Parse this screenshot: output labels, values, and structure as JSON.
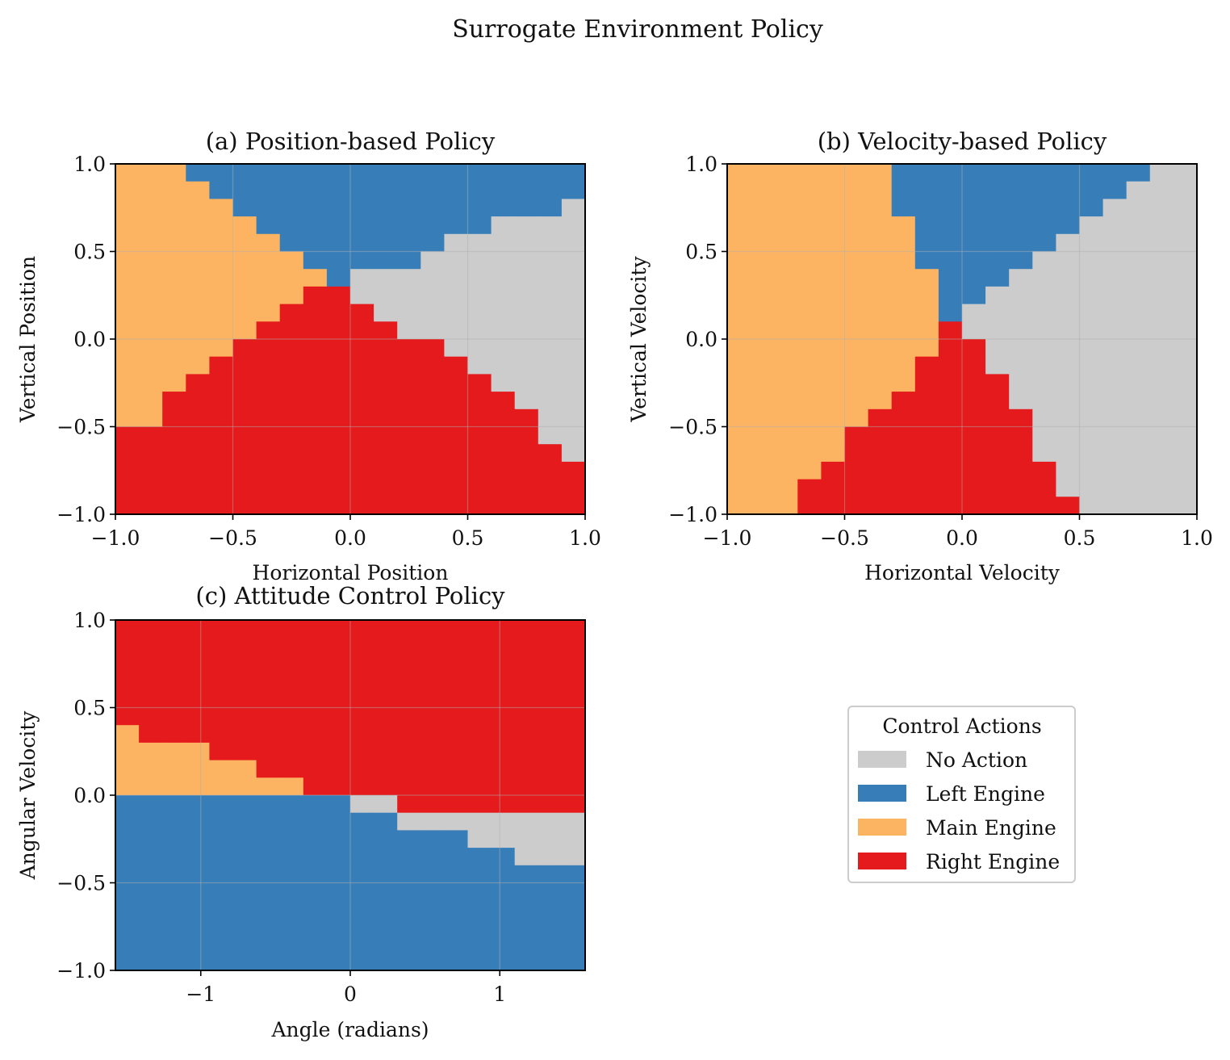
{
  "figure_title": "Surrogate Environment Policy",
  "legend": {
    "title": "Control Actions",
    "placement": "lower-right empty panel",
    "items": [
      {
        "label": "No Action",
        "color": "#cccccc"
      },
      {
        "label": "Left Engine",
        "color": "#377eb8"
      },
      {
        "label": "Main Engine",
        "color": "#fdb462"
      },
      {
        "label": "Right Engine",
        "color": "#e41a1c"
      }
    ]
  },
  "chart_data": [
    {
      "type": "heatmap",
      "title": "(a) Position-based Policy",
      "xlabel": "Horizontal Position",
      "ylabel": "Vertical Position",
      "xlim": [
        -1.0,
        1.0
      ],
      "ylim": [
        -1.0,
        1.0
      ],
      "xticks": [
        -1.0,
        -0.5,
        0.0,
        0.5,
        1.0
      ],
      "yticks": [
        -1.0,
        -0.5,
        0.0,
        0.5,
        1.0
      ],
      "xtick_labels": [
        "−1.0",
        "−0.5",
        "0.0",
        "0.5",
        "1.0"
      ],
      "ytick_labels": [
        "−1.0",
        "−0.5",
        "0.0",
        "0.5",
        "1.0"
      ],
      "grid": true,
      "action_codes": {
        "N": "No Action",
        "L": "Left Engine",
        "M": "Main Engine",
        "R": "Right Engine"
      },
      "row_order": "top row first (y from 1.0 down to -1.0), 20 columns x from -1.0 to 1.0",
      "grid_rows": [
        "MMMLLLLLLLLLLLLLLLLL",
        "MMMMLLLLLLLLLLLLLLLL",
        "MMMMMLLLLLLLLLLLLLLN",
        "MMMMMMLLLLLLLLLLNNNN",
        "MMMMMMMLLLLLLLNNNNNN",
        "MMMMMMMMLLLLLNNNNNNN",
        "MMMMMMMMMLNNNNNNNNNN",
        "MMMMMMMMRRNNNNNNNNNN",
        "MMMMMMMRRRRNNNNNNNNN",
        "MMMMMMRRRRRRNNNNNNNN",
        "MMMMMRRRRRRRRRNNNNNN",
        "MMMMRRRRRRRRRRRNNNNN",
        "MMMRRRRRRRRRRRRRNNNN",
        "MMRRRRRRRRRRRRRRRNNN",
        "MMRRRRRRRRRRRRRRRRNN",
        "RRRRRRRRRRRRRRRRRRNN",
        "RRRRRRRRRRRRRRRRRRRN",
        "RRRRRRRRRRRRRRRRRRRR",
        "RRRRRRRRRRRRRRRRRRRR",
        "RRRRRRRRRRRRRRRRRRRR"
      ]
    },
    {
      "type": "heatmap",
      "title": "(b) Velocity-based Policy",
      "xlabel": "Horizontal Velocity",
      "ylabel": "Vertical Velocity",
      "xlim": [
        -1.0,
        1.0
      ],
      "ylim": [
        -1.0,
        1.0
      ],
      "xticks": [
        -1.0,
        -0.5,
        0.0,
        0.5,
        1.0
      ],
      "yticks": [
        -1.0,
        -0.5,
        0.0,
        0.5,
        1.0
      ],
      "xtick_labels": [
        "−1.0",
        "−0.5",
        "0.0",
        "0.5",
        "1.0"
      ],
      "ytick_labels": [
        "−1.0",
        "−0.5",
        "0.0",
        "0.5",
        "1.0"
      ],
      "grid": true,
      "action_codes": {
        "N": "No Action",
        "L": "Left Engine",
        "M": "Main Engine",
        "R": "Right Engine"
      },
      "row_order": "top row first (y from 1.0 down to -1.0), 20 columns x from -1.0 to 1.0",
      "grid_rows": [
        "MMMMMMMLLLLLLLLLLLNN",
        "MMMMMMMLLLLLLLLLLNNN",
        "MMMMMMMLLLLLLLLLNNNN",
        "MMMMMMMMLLLLLLLNNNNN",
        "MMMMMMMMLLLLLLNNNNNN",
        "MMMMMMMMLLLLLNNNNNNN",
        "MMMMMMMMMLLLNNNNNNNN",
        "MMMMMMMMMLLNNNNNNNNN",
        "MMMMMMMMMLNNNNNNNNNN",
        "MMMMMMMMMRNNNNNNNNNN",
        "MMMMMMMMMRRNNNNNNNNN",
        "MMMMMMMMRRRNNNNNNNNN",
        "MMMMMMMMRRRRNNNNNNNN",
        "MMMMMMMRRRRRNNNNNNNN",
        "MMMMMMRRRRRRRNNNNNNN",
        "MMMMMRRRRRRRRNNNNNNN",
        "MMMMMRRRRRRRRNNNNNNN",
        "MMMMRRRRRRRRRRNNNNNN",
        "MMMRRRRRRRRRRRNNNNNN",
        "MMMRRRRRRRRRRRRNNNNN"
      ]
    },
    {
      "type": "heatmap",
      "title": "(c) Attitude Control Policy",
      "xlabel": "Angle (radians)",
      "ylabel": "Angular Velocity",
      "xlim": [
        -1.5708,
        1.5708
      ],
      "ylim": [
        -1.0,
        1.0
      ],
      "xticks": [
        -1,
        0,
        1
      ],
      "yticks": [
        -1.0,
        -0.5,
        0.0,
        0.5,
        1.0
      ],
      "xtick_labels": [
        "−1",
        "0",
        "1"
      ],
      "ytick_labels": [
        "−1.0",
        "−0.5",
        "0.0",
        "0.5",
        "1.0"
      ],
      "grid": true,
      "action_codes": {
        "N": "No Action",
        "L": "Left Engine",
        "M": "Main Engine",
        "R": "Right Engine"
      },
      "row_order": "top row first (y from 1.0 down to -1.0), 20 columns x from -pi/2 to pi/2",
      "grid_rows": [
        "RRRRRRRRRRRRRRRRRRRR",
        "RRRRRRRRRRRRRRRRRRRR",
        "RRRRRRRRRRRRRRRRRRRR",
        "RRRRRRRRRRRRRRRRRRRR",
        "RRRRRRRRRRRRRRRRRRRR",
        "RRRRRRRRRRRRRRRRRRRR",
        "MRRRRRRRRRRRRRRRRRRR",
        "MMMMRRRRRRRRRRRRRRRR",
        "MMMMMMRRRRRRRRRRRRRR",
        "MMMMMMMMRRRRRRRRRRRR",
        "LLLLLLLLLLNNRRRRRRRR",
        "LLLLLLLLLLLLNNNNNNNN",
        "LLLLLLLLLLLLLLLNNNNN",
        "LLLLLLLLLLLLLLLLLNNN",
        "LLLLLLLLLLLLLLLLLLLL",
        "LLLLLLLLLLLLLLLLLLLL",
        "LLLLLLLLLLLLLLLLLLLL",
        "LLLLLLLLLLLLLLLLLLLL",
        "LLLLLLLLLLLLLLLLLLLL",
        "LLLLLLLLLLLLLLLLLLLL"
      ]
    }
  ]
}
